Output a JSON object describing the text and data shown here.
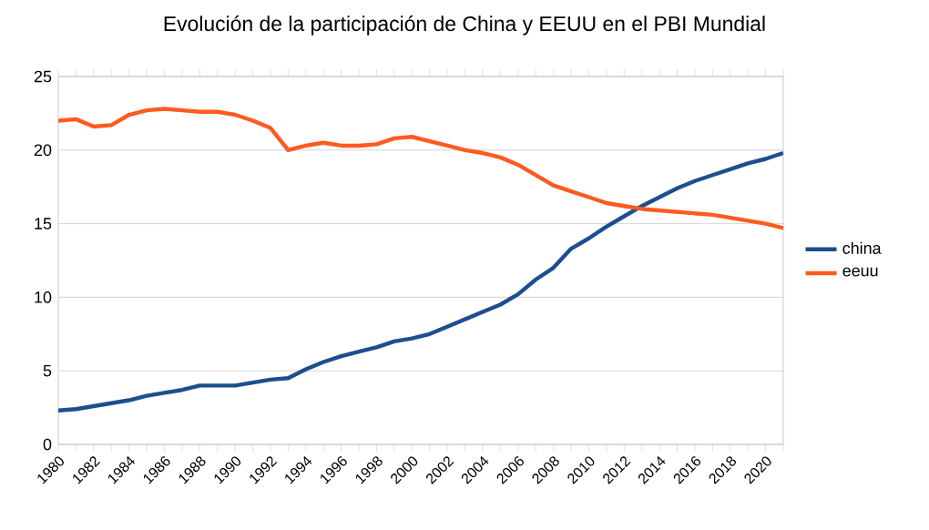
{
  "chart_data": {
    "type": "line",
    "title": "Evolución de la participación de China y EEUU  en el PBI Mundial",
    "x": [
      1980,
      1981,
      1982,
      1983,
      1984,
      1985,
      1986,
      1987,
      1988,
      1989,
      1990,
      1991,
      1992,
      1993,
      1994,
      1995,
      1996,
      1997,
      1998,
      1999,
      2000,
      2001,
      2002,
      2003,
      2004,
      2005,
      2006,
      2007,
      2008,
      2009,
      2010,
      2011,
      2012,
      2013,
      2014,
      2015,
      2016,
      2017,
      2018,
      2019,
      2020,
      2021
    ],
    "series": [
      {
        "name": "china",
        "color": "#1c4f8f",
        "values": [
          2.3,
          2.4,
          2.6,
          2.8,
          3.0,
          3.3,
          3.5,
          3.7,
          4.0,
          4.0,
          4.0,
          4.2,
          4.4,
          4.5,
          5.1,
          5.6,
          6.0,
          6.3,
          6.6,
          7.0,
          7.2,
          7.5,
          8.0,
          8.5,
          9.0,
          9.5,
          10.2,
          11.2,
          12.0,
          13.3,
          14.0,
          14.8,
          15.5,
          16.2,
          16.8,
          17.4,
          17.9,
          18.3,
          18.7,
          19.1,
          19.4,
          19.8
        ]
      },
      {
        "name": "eeuu",
        "color": "#ff5a1f",
        "values": [
          22.0,
          22.1,
          21.6,
          21.7,
          22.4,
          22.7,
          22.8,
          22.7,
          22.6,
          22.6,
          22.4,
          22.0,
          21.5,
          20.0,
          20.3,
          20.5,
          20.3,
          20.3,
          20.4,
          20.8,
          20.9,
          20.6,
          20.3,
          20.0,
          19.8,
          19.5,
          19.0,
          18.3,
          17.6,
          17.2,
          16.8,
          16.4,
          16.2,
          16.0,
          15.9,
          15.8,
          15.7,
          15.6,
          15.4,
          15.2,
          15.0,
          14.7
        ]
      }
    ],
    "xlim": [
      1980,
      2021
    ],
    "xticks": [
      {
        "value": 1980,
        "label": "1980"
      },
      {
        "value": 1981,
        "label": null
      },
      {
        "value": 1982,
        "label": "1982"
      },
      {
        "value": 1983,
        "label": null
      },
      {
        "value": 1984,
        "label": "1984"
      },
      {
        "value": 1985,
        "label": null
      },
      {
        "value": 1986,
        "label": "1986"
      },
      {
        "value": 1987,
        "label": null
      },
      {
        "value": 1988,
        "label": "1988"
      },
      {
        "value": 1989,
        "label": null
      },
      {
        "value": 1990,
        "label": "1990"
      },
      {
        "value": 1991,
        "label": null
      },
      {
        "value": 1992,
        "label": "1992"
      },
      {
        "value": 1993,
        "label": null
      },
      {
        "value": 1994,
        "label": "1994"
      },
      {
        "value": 1995,
        "label": null
      },
      {
        "value": 1996,
        "label": "1996"
      },
      {
        "value": 1997,
        "label": null
      },
      {
        "value": 1998,
        "label": "1998"
      },
      {
        "value": 1999,
        "label": null
      },
      {
        "value": 2000,
        "label": "2000"
      },
      {
        "value": 2001,
        "label": null
      },
      {
        "value": 2002,
        "label": "2002"
      },
      {
        "value": 2003,
        "label": null
      },
      {
        "value": 2004,
        "label": "2004"
      },
      {
        "value": 2005,
        "label": null
      },
      {
        "value": 2006,
        "label": "2006"
      },
      {
        "value": 2007,
        "label": null
      },
      {
        "value": 2008,
        "label": "2008"
      },
      {
        "value": 2009,
        "label": null
      },
      {
        "value": 2010,
        "label": "2010"
      },
      {
        "value": 2011,
        "label": null
      },
      {
        "value": 2012,
        "label": "2012"
      },
      {
        "value": 2013,
        "label": null
      },
      {
        "value": 2014,
        "label": "2014"
      },
      {
        "value": 2015,
        "label": null
      },
      {
        "value": 2016,
        "label": "2016"
      },
      {
        "value": 2017,
        "label": null
      },
      {
        "value": 2018,
        "label": "2018"
      },
      {
        "value": 2019,
        "label": null
      },
      {
        "value": 2020,
        "label": "2020"
      },
      {
        "value": 2021,
        "label": null
      }
    ],
    "ylim": [
      0,
      25
    ],
    "yticks": [
      0,
      5,
      10,
      15,
      20,
      25
    ],
    "grid": "y",
    "legend": "right"
  }
}
